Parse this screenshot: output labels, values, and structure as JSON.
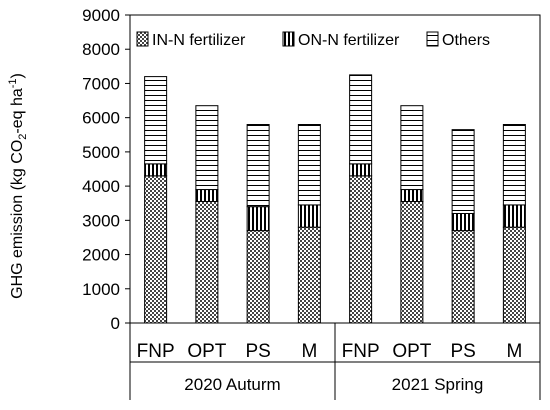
{
  "chart_data": {
    "type": "bar",
    "stacked": true,
    "ylabel_parts": [
      "GHG emission (kg CO",
      "2",
      "-eq ha",
      "-1",
      ")"
    ],
    "ylim": [
      0,
      9000
    ],
    "yticks": [
      0,
      1000,
      2000,
      3000,
      4000,
      5000,
      6000,
      7000,
      8000,
      9000
    ],
    "groups": [
      {
        "label": "2020 Auturm",
        "categories": [
          "FNP",
          "OPT",
          "PS",
          "M"
        ]
      },
      {
        "label": "2021 Spring",
        "categories": [
          "FNP",
          "OPT",
          "PS",
          "M"
        ]
      }
    ],
    "categories": [
      "FNP",
      "OPT",
      "PS",
      "M",
      "FNP",
      "OPT",
      "PS",
      "M"
    ],
    "series": [
      {
        "name": "IN-N fertilizer",
        "pattern": "crosshatch",
        "values": [
          4300,
          3550,
          2700,
          2800,
          4300,
          3550,
          2700,
          2800
        ]
      },
      {
        "name": "ON-N fertilizer",
        "pattern": "vertical",
        "values": [
          350,
          350,
          700,
          650,
          350,
          350,
          500,
          650
        ]
      },
      {
        "name": "Others",
        "pattern": "horizontal",
        "values": [
          2550,
          2450,
          2400,
          2350,
          2600,
          2450,
          2450,
          2350
        ]
      }
    ],
    "legend_position": "top",
    "grid": false
  }
}
